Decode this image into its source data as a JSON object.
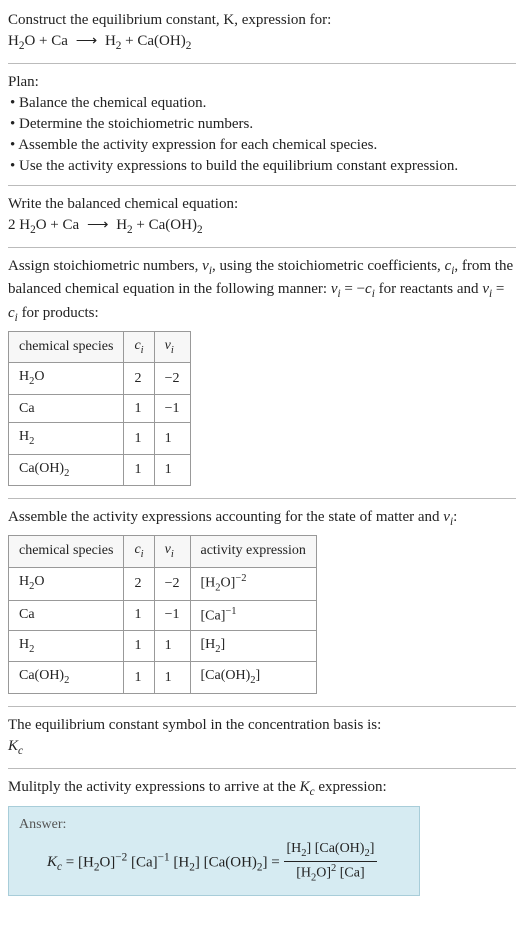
{
  "header": {
    "prompt_line1": "Construct the equilibrium constant, K, expression for:",
    "equation_unbalanced": "H₂O + Ca  ⟶  H₂ + Ca(OH)₂"
  },
  "plan": {
    "title": "Plan:",
    "items": [
      "Balance the chemical equation.",
      "Determine the stoichiometric numbers.",
      "Assemble the activity expression for each chemical species.",
      "Use the activity expressions to build the equilibrium constant expression."
    ]
  },
  "balanced": {
    "title": "Write the balanced chemical equation:",
    "equation": "2 H₂O + Ca  ⟶  H₂ + Ca(OH)₂"
  },
  "stoich": {
    "intro_a": "Assign stoichiometric numbers, νᵢ, using the stoichiometric coefficients, cᵢ, from the balanced chemical equation in the following manner: νᵢ = −cᵢ for reactants and νᵢ = cᵢ for products:",
    "table": {
      "headers": [
        "chemical species",
        "cᵢ",
        "νᵢ"
      ],
      "rows": [
        [
          "H₂O",
          "2",
          "−2"
        ],
        [
          "Ca",
          "1",
          "−1"
        ],
        [
          "H₂",
          "1",
          "1"
        ],
        [
          "Ca(OH)₂",
          "1",
          "1"
        ]
      ]
    }
  },
  "activity": {
    "intro": "Assemble the activity expressions accounting for the state of matter and νᵢ:",
    "table": {
      "headers": [
        "chemical species",
        "cᵢ",
        "νᵢ",
        "activity expression"
      ],
      "rows": [
        {
          "sp": "H₂O",
          "c": "2",
          "v": "−2",
          "expr": "[H₂O]⁻²"
        },
        {
          "sp": "Ca",
          "c": "1",
          "v": "−1",
          "expr": "[Ca]⁻¹"
        },
        {
          "sp": "H₂",
          "c": "1",
          "v": "1",
          "expr": "[H₂]"
        },
        {
          "sp": "Ca(OH)₂",
          "c": "1",
          "v": "1",
          "expr": "[Ca(OH)₂]"
        }
      ]
    }
  },
  "symbol": {
    "line": "The equilibrium constant symbol in the concentration basis is:",
    "kc": "K_c"
  },
  "multiply": {
    "line": "Mulitply the activity expressions to arrive at the K_c expression:"
  },
  "answer": {
    "label": "Answer:",
    "lhs": "K_c = [H₂O]⁻² [Ca]⁻¹ [H₂] [Ca(OH)₂] =",
    "frac_num": "[H₂] [Ca(OH)₂]",
    "frac_den": "[H₂O]² [Ca]"
  },
  "colors": {
    "divider": "#bbbbbb",
    "answer_bg": "#d6ebf2",
    "answer_border": "#a8cdd9",
    "text": "#222222"
  }
}
